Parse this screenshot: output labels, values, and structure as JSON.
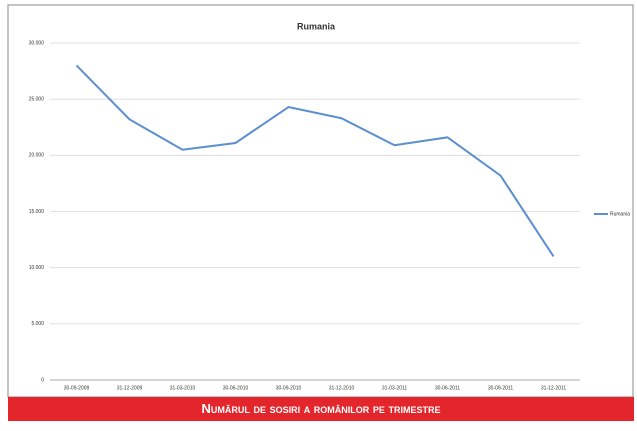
{
  "chart_data": {
    "type": "line",
    "title": "Rumania",
    "categories": [
      "30-09-2009",
      "31-12-2009",
      "31-03-2010",
      "30-06-2010",
      "30-09-2010",
      "31-12-2010",
      "31-03-2011",
      "30-06-2011",
      "30-09-2011",
      "31-12-2011"
    ],
    "series": [
      {
        "name": "Rumania",
        "color": "#5b8fd0",
        "values": [
          28000,
          23200,
          20500,
          21100,
          24300,
          23300,
          20900,
          21600,
          18200,
          11000
        ]
      }
    ],
    "ylim": [
      0,
      30000
    ],
    "yticks": [
      0,
      {
        "value": 5000,
        "label": "5.000"
      },
      {
        "value": 10000,
        "label": "10.000"
      },
      {
        "value": 15000,
        "label": "15.000"
      },
      {
        "value": 20000,
        "label": "20.000"
      },
      {
        "value": 25000,
        "label": "25.000"
      },
      {
        "value": 30000,
        "label": "30.000"
      }
    ],
    "grid": true,
    "legend": "right"
  },
  "caption": "Numărul de sosiri a românilor pe trimestre"
}
